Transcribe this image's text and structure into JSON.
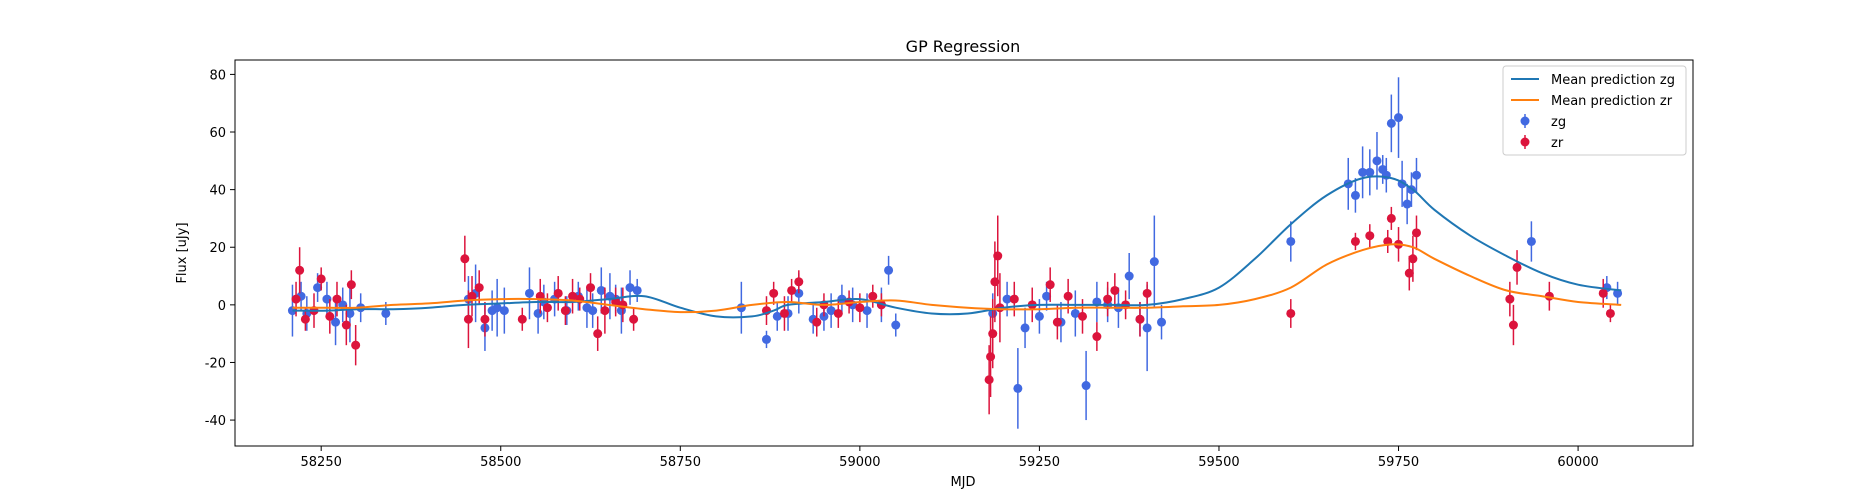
{
  "chart_data": {
    "type": "scatter",
    "title": "GP Regression",
    "xlabel": "MJD",
    "ylabel": "Flux [uJy]",
    "xlim": [
      58130,
      60160
    ],
    "ylim": [
      -49,
      85
    ],
    "xticks": [
      58250,
      58500,
      58750,
      59000,
      59250,
      59500,
      59750,
      60000
    ],
    "yticks": [
      -40,
      -20,
      0,
      20,
      40,
      60,
      80
    ],
    "grid": false,
    "legend_position": "top-right",
    "colors": {
      "zg_line": "#1f77b4",
      "zr_line": "#ff7f0e",
      "zg_points": "#4169e1",
      "zr_points": "#dc143c"
    },
    "series": [
      {
        "name": "Mean prediction zg",
        "kind": "line",
        "x": [
          58210,
          58260,
          58300,
          58350,
          58400,
          58450,
          58500,
          58550,
          58600,
          58650,
          58700,
          58750,
          58800,
          58850,
          58880,
          58900,
          58950,
          59000,
          59050,
          59100,
          59150,
          59200,
          59250,
          59300,
          59350,
          59400,
          59450,
          59500,
          59550,
          59600,
          59650,
          59700,
          59740,
          59770,
          59800,
          59850,
          59900,
          59950,
          60000,
          60060
        ],
        "y": [
          -2,
          -2,
          -1.5,
          -1.5,
          -1,
          0,
          0.5,
          1,
          1,
          2,
          3,
          -1,
          -4,
          -4,
          -2,
          0,
          1,
          2,
          -1,
          -3,
          -3,
          -1,
          0,
          0,
          0,
          0,
          2,
          6,
          16,
          28,
          38,
          44,
          44,
          40,
          33,
          24,
          17,
          11,
          7,
          5
        ]
      },
      {
        "name": "Mean prediction zr",
        "kind": "line",
        "x": [
          58210,
          58260,
          58300,
          58350,
          58400,
          58450,
          58500,
          58550,
          58600,
          58650,
          58700,
          58750,
          58800,
          58850,
          58900,
          58950,
          59000,
          59050,
          59100,
          59150,
          59200,
          59250,
          59300,
          59350,
          59400,
          59450,
          59500,
          59550,
          59600,
          59650,
          59700,
          59740,
          59770,
          59800,
          59850,
          59900,
          59950,
          60000,
          60060
        ],
        "y": [
          -1,
          -1,
          -1,
          0,
          0.5,
          1.5,
          2,
          2,
          1.5,
          0,
          -1.5,
          -2.5,
          -2,
          0,
          1,
          0,
          1,
          1.5,
          0,
          -1,
          -1.5,
          -1.5,
          -1,
          -1,
          -1,
          -0.5,
          0,
          2,
          6,
          14,
          19,
          21,
          20,
          16,
          10,
          5,
          3,
          1,
          0
        ]
      },
      {
        "name": "zg",
        "kind": "errorbar",
        "x": [
          58210,
          58222,
          58230,
          58245,
          58258,
          58270,
          58280,
          58290,
          58305,
          58340,
          58455,
          58465,
          58478,
          58488,
          58495,
          58505,
          58540,
          58552,
          58560,
          58575,
          58592,
          58608,
          58620,
          58628,
          58640,
          58652,
          58660,
          58668,
          58680,
          58690,
          58835,
          58870,
          58885,
          58900,
          58915,
          58935,
          58950,
          58960,
          58975,
          58990,
          59010,
          59030,
          59040,
          59050,
          59185,
          59205,
          59220,
          59230,
          59250,
          59260,
          59280,
          59300,
          59315,
          59330,
          59345,
          59360,
          59375,
          59390,
          59400,
          59410,
          59420,
          59600,
          59680,
          59690,
          59700,
          59710,
          59720,
          59728,
          59733,
          59740,
          59750,
          59755,
          59762,
          59768,
          59775,
          59935,
          60040,
          60055
        ],
        "y": [
          -2,
          3,
          -3,
          6,
          2,
          -6,
          0,
          -3,
          -1,
          -3,
          2,
          4,
          -8,
          -2,
          -1,
          -2,
          4,
          -3,
          1,
          2,
          -2,
          3,
          -1,
          -2,
          5,
          3,
          2,
          -2,
          6,
          5,
          -1,
          -12,
          -4,
          -3,
          4,
          -5,
          -4,
          -2,
          2,
          0,
          -2,
          0,
          12,
          -7,
          -3,
          2,
          -29,
          -8,
          -4,
          3,
          -6,
          -3,
          -28,
          1,
          0,
          -1,
          10,
          -5,
          -8,
          15,
          -6,
          22,
          42,
          38,
          46,
          46,
          50,
          47,
          45,
          63,
          65,
          42,
          35,
          40,
          45,
          22,
          6,
          4
        ],
        "err": [
          9,
          5,
          6,
          5,
          6,
          8,
          6,
          10,
          5,
          4,
          8,
          10,
          8,
          7,
          10,
          8,
          9,
          7,
          6,
          6,
          5,
          5,
          7,
          6,
          8,
          8,
          5,
          8,
          6,
          4,
          9,
          3,
          5,
          6,
          7,
          5,
          5,
          6,
          5,
          6,
          6,
          6,
          5,
          4,
          7,
          6,
          14,
          7,
          6,
          5,
          7,
          8,
          12,
          7,
          6,
          7,
          8,
          6,
          15,
          16,
          6,
          7,
          9,
          6,
          9,
          8,
          10,
          5,
          6,
          10,
          14,
          8,
          7,
          6,
          6,
          7,
          4,
          4
        ]
      },
      {
        "name": "zr",
        "kind": "errorbar",
        "x": [
          58215,
          58220,
          58228,
          58240,
          58250,
          58262,
          58272,
          58285,
          58292,
          58298,
          58450,
          58455,
          58460,
          58470,
          58478,
          58530,
          58555,
          58565,
          58580,
          58590,
          58600,
          58610,
          58625,
          58635,
          58645,
          58660,
          58670,
          58685,
          58870,
          58880,
          58895,
          58905,
          58915,
          58940,
          58950,
          58970,
          58985,
          59000,
          59018,
          59030,
          59180,
          59182,
          59185,
          59188,
          59192,
          59195,
          59215,
          59240,
          59265,
          59275,
          59290,
          59310,
          59330,
          59345,
          59355,
          59370,
          59390,
          59400,
          59600,
          59690,
          59710,
          59735,
          59740,
          59750,
          59765,
          59770,
          59775,
          59905,
          59910,
          59915,
          59960,
          60035,
          60045
        ],
        "y": [
          2,
          12,
          -5,
          -2,
          9,
          -4,
          2,
          -7,
          7,
          -14,
          16,
          -5,
          3,
          6,
          -5,
          -5,
          3,
          -1,
          4,
          -2,
          3,
          2,
          6,
          -10,
          -2,
          1,
          0,
          -5,
          -2,
          4,
          -3,
          5,
          8,
          -6,
          0,
          -3,
          1,
          -1,
          3,
          0,
          -26,
          -18,
          -10,
          8,
          17,
          -1,
          2,
          0,
          7,
          -6,
          3,
          -4,
          -11,
          2,
          5,
          0,
          -5,
          4,
          -3,
          22,
          24,
          22,
          30,
          21,
          11,
          16,
          25,
          2,
          -7,
          13,
          3,
          4,
          -3
        ],
        "err": [
          6,
          8,
          4,
          6,
          4,
          6,
          6,
          7,
          5,
          7,
          8,
          10,
          7,
          6,
          6,
          4,
          6,
          5,
          6,
          5,
          6,
          4,
          5,
          6,
          8,
          5,
          6,
          4,
          5,
          4,
          6,
          4,
          4,
          5,
          4,
          5,
          4,
          5,
          4,
          4,
          12,
          14,
          12,
          14,
          14,
          12,
          6,
          6,
          6,
          6,
          6,
          6,
          5,
          6,
          6,
          5,
          6,
          4,
          5,
          3,
          4,
          4,
          4,
          6,
          6,
          8,
          6,
          6,
          7,
          6,
          5,
          5,
          3
        ]
      }
    ]
  }
}
